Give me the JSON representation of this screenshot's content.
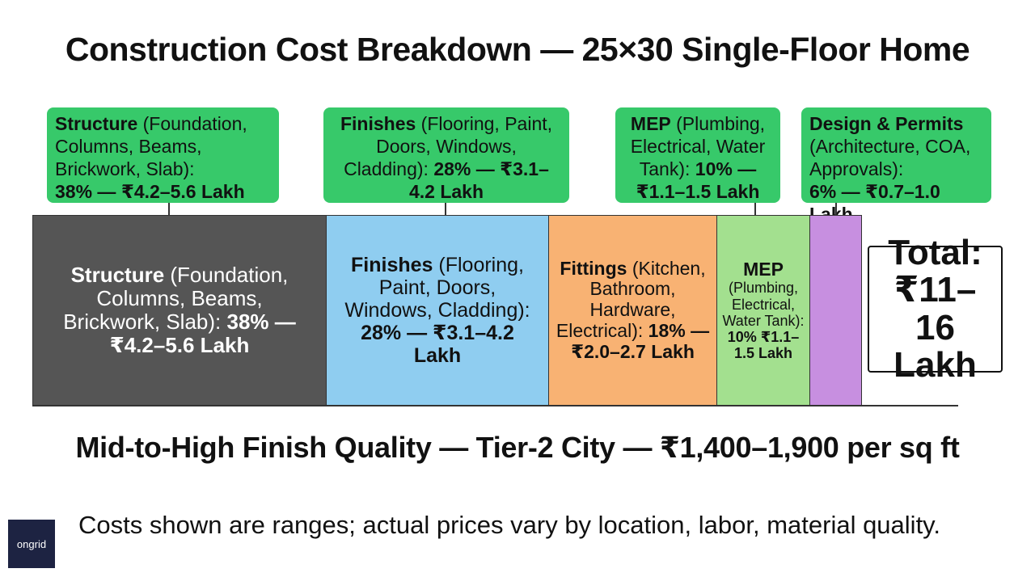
{
  "title": "Construction Cost Breakdown — 25×30 Single-Floor Home",
  "subtitle": "Mid-to-High Finish Quality — Tier-2 City — ₹1,400–1,900 per sq ft",
  "note": "Costs shown are ranges; actual prices vary by location, labor, material quality.",
  "logo_text": "ongrid",
  "colors": {
    "callout": "#37c96a",
    "structure": "#555555",
    "finishes": "#8fcdf0",
    "fittings": "#f8b273",
    "mep": "#a3e08f",
    "design": "#c78fe0"
  },
  "callouts": [
    {
      "bold": "Structure",
      "rest": " (Foundation, Columns, Beams, Brickwork, Slab):",
      "value": "38% — ₹4.2–5.6 Lakh"
    },
    {
      "bold": "Finishes",
      "rest": " (Flooring, Paint, Doors, Windows, Cladding):",
      "value": "28% — ₹3.1–4.2 Lakh"
    },
    {
      "bold": "MEP",
      "rest": " (Plumbing, Electrical, Water Tank):",
      "value": "10% — ₹1.1–1.5 Lakh"
    },
    {
      "bold": "Design & Permits",
      "rest": " (Architecture, COA, Approvals):",
      "value": "6% — ₹0.7–1.0 Lakh"
    }
  ],
  "segments": [
    {
      "bold": "Structure",
      "rest": " (Foundation, Columns, Beams, Brickwork, Slab):",
      "value": "38% — ₹4.2–5.6 Lakh"
    },
    {
      "bold": "Finishes",
      "rest": " (Flooring, Paint, Doors, Windows, Cladding):",
      "value": "28% — ₹3.1–4.2 Lakh"
    },
    {
      "bold": "Fittings",
      "rest": " (Kitchen, Bathroom, Hardware, Electrical):",
      "value": "18% — ₹2.0–2.7 Lakh"
    },
    {
      "bold": "MEP",
      "rest": " (Plumbing, Electrical, Water Tank):",
      "value": "10% ₹1.1–1.5 Lakh"
    },
    {
      "bold": "",
      "rest": "",
      "value": ""
    }
  ],
  "total": {
    "label": "Total:",
    "value": "₹11–16 Lakh"
  },
  "chart_data": {
    "type": "bar",
    "orientation": "horizontal-stacked",
    "title": "Construction Cost Breakdown — 25×30 Single-Floor Home",
    "categories": [
      "Structure",
      "Finishes",
      "Fittings",
      "MEP",
      "Design & Permits"
    ],
    "values": [
      38,
      28,
      18,
      10,
      6
    ],
    "cost_ranges_lakh": [
      [
        4.2,
        5.6
      ],
      [
        3.1,
        4.2
      ],
      [
        2.0,
        2.7
      ],
      [
        1.1,
        1.5
      ],
      [
        0.7,
        1.0
      ]
    ],
    "total_range_lakh": [
      11,
      16
    ]
  }
}
